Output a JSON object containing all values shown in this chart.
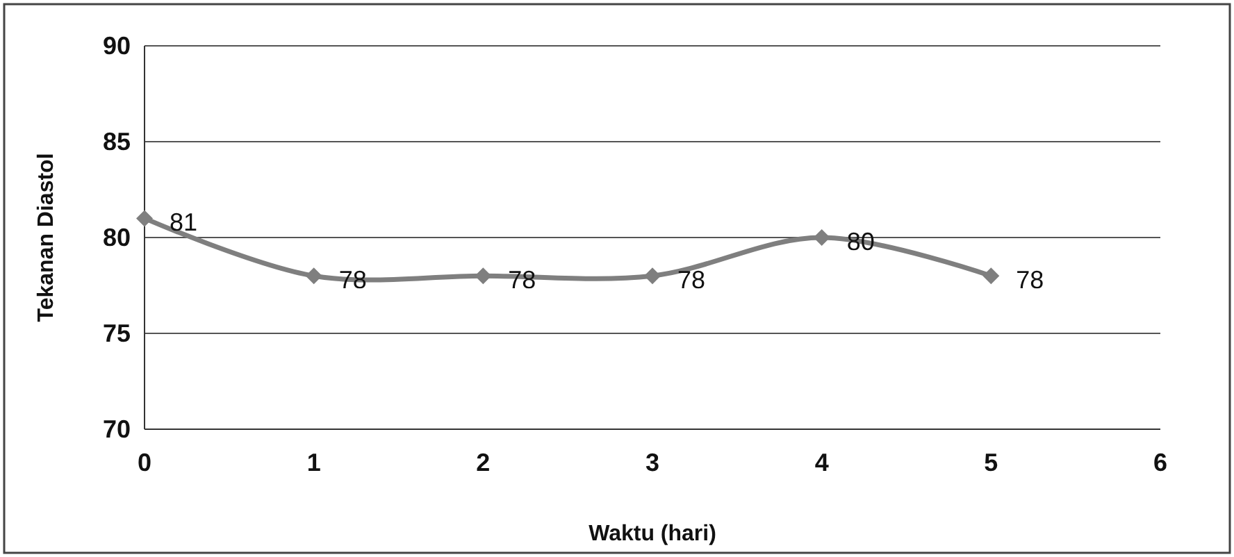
{
  "chart_data": {
    "type": "line",
    "xlabel": "Waktu (hari)",
    "ylabel": "Tekanan Diastol",
    "x": [
      0,
      1,
      2,
      3,
      4,
      5
    ],
    "series": [
      {
        "color": "#7f7f7f",
        "values": [
          81,
          78,
          78,
          78,
          80,
          78
        ]
      }
    ],
    "xlim": [
      0,
      6
    ],
    "xticks": [
      0,
      1,
      2,
      3,
      4,
      5,
      6
    ],
    "ylim": [
      70,
      90
    ],
    "yticks": [
      70,
      75,
      80,
      85,
      90
    ],
    "grid": "y",
    "marker": "diamond",
    "line_style": "solid",
    "data_labels": true
  }
}
